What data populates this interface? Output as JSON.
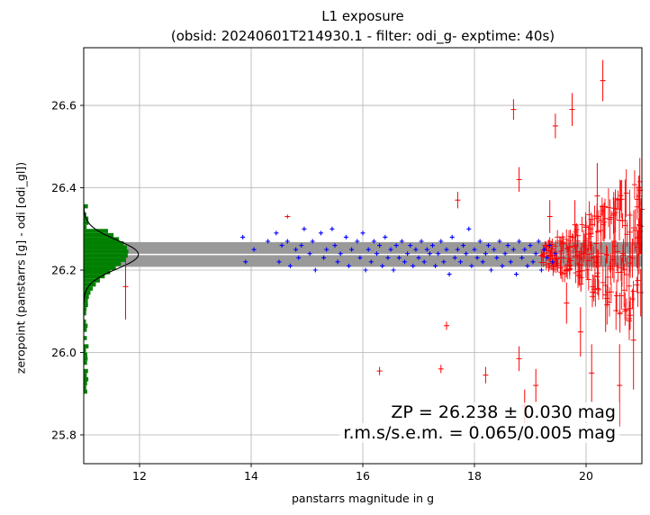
{
  "chart_data": {
    "type": "scatter",
    "title": "L1 exposure",
    "subtitle": "(obsid: 20240601T214930.1 - filter: odi_g- exptime: 40s)",
    "xlabel": "panstarrs magnitude in g",
    "ylabel": "zeropoint (panstarrs [g] - odi [odi_gl])",
    "xlim": [
      11.0,
      21.0
    ],
    "ylim": [
      25.73,
      26.74
    ],
    "xticks": [
      12,
      14,
      16,
      18,
      20
    ],
    "yticks": [
      25.8,
      26.0,
      26.2,
      26.4,
      26.6
    ],
    "grid": true,
    "zeropoint": 26.238,
    "zeropoint_error": 0.03,
    "annotation_line1": "ZP = 26.238 ± 0.030 mag",
    "annotation_line2": "r.m.s/s.e.m. = 0.065/0.005 mag",
    "colors": {
      "used": "#0000ff",
      "outlier": "#ff0000",
      "histogram": "#008000",
      "band": "#999999"
    },
    "used_points": [
      [
        13.85,
        26.28
      ],
      [
        13.9,
        26.22
      ],
      [
        14.05,
        26.25
      ],
      [
        14.3,
        26.27
      ],
      [
        14.45,
        26.29
      ],
      [
        14.5,
        26.22
      ],
      [
        14.55,
        26.26
      ],
      [
        14.65,
        26.27
      ],
      [
        14.7,
        26.21
      ],
      [
        14.8,
        26.25
      ],
      [
        14.85,
        26.23
      ],
      [
        14.9,
        26.26
      ],
      [
        14.95,
        26.3
      ],
      [
        15.05,
        26.24
      ],
      [
        15.1,
        26.27
      ],
      [
        15.15,
        26.2
      ],
      [
        15.25,
        26.29
      ],
      [
        15.3,
        26.23
      ],
      [
        15.35,
        26.25
      ],
      [
        15.45,
        26.3
      ],
      [
        15.5,
        26.26
      ],
      [
        15.55,
        26.22
      ],
      [
        15.6,
        26.24
      ],
      [
        15.7,
        26.28
      ],
      [
        15.75,
        26.21
      ],
      [
        15.8,
        26.25
      ],
      [
        15.9,
        26.27
      ],
      [
        15.95,
        26.23
      ],
      [
        16.0,
        26.29
      ],
      [
        16.05,
        26.2
      ],
      [
        16.1,
        26.25
      ],
      [
        16.15,
        26.22
      ],
      [
        16.2,
        26.27
      ],
      [
        16.25,
        26.24
      ],
      [
        16.3,
        26.26
      ],
      [
        16.35,
        26.21
      ],
      [
        16.4,
        26.28
      ],
      [
        16.45,
        26.23
      ],
      [
        16.5,
        26.25
      ],
      [
        16.55,
        26.2
      ],
      [
        16.6,
        26.26
      ],
      [
        16.65,
        26.23
      ],
      [
        16.7,
        26.27
      ],
      [
        16.75,
        26.22
      ],
      [
        16.8,
        26.24
      ],
      [
        16.85,
        26.26
      ],
      [
        16.9,
        26.21
      ],
      [
        16.95,
        26.25
      ],
      [
        17.0,
        26.23
      ],
      [
        17.05,
        26.27
      ],
      [
        17.1,
        26.22
      ],
      [
        17.15,
        26.25
      ],
      [
        17.2,
        26.24
      ],
      [
        17.25,
        26.26
      ],
      [
        17.3,
        26.21
      ],
      [
        17.35,
        26.24
      ],
      [
        17.4,
        26.27
      ],
      [
        17.45,
        26.22
      ],
      [
        17.5,
        26.25
      ],
      [
        17.55,
        26.19
      ],
      [
        17.6,
        26.28
      ],
      [
        17.65,
        26.23
      ],
      [
        17.7,
        26.25
      ],
      [
        17.75,
        26.22
      ],
      [
        17.8,
        26.26
      ],
      [
        17.85,
        26.24
      ],
      [
        17.9,
        26.3
      ],
      [
        17.95,
        26.21
      ],
      [
        18.0,
        26.25
      ],
      [
        18.05,
        26.23
      ],
      [
        18.1,
        26.27
      ],
      [
        18.15,
        26.22
      ],
      [
        18.2,
        26.24
      ],
      [
        18.25,
        26.26
      ],
      [
        18.3,
        26.2
      ],
      [
        18.35,
        26.25
      ],
      [
        18.4,
        26.23
      ],
      [
        18.45,
        26.27
      ],
      [
        18.5,
        26.21
      ],
      [
        18.55,
        26.24
      ],
      [
        18.6,
        26.26
      ],
      [
        18.65,
        26.22
      ],
      [
        18.7,
        26.25
      ],
      [
        18.75,
        26.19
      ],
      [
        18.8,
        26.27
      ],
      [
        18.85,
        26.23
      ],
      [
        18.9,
        26.25
      ],
      [
        18.95,
        26.21
      ],
      [
        19.0,
        26.26
      ],
      [
        19.05,
        26.22
      ],
      [
        19.1,
        26.24
      ],
      [
        19.15,
        26.27
      ],
      [
        19.2,
        26.2
      ],
      [
        19.25,
        26.25
      ],
      [
        19.3,
        26.23
      ],
      [
        19.35,
        26.26
      ],
      [
        19.4,
        26.22
      ],
      [
        19.45,
        26.24
      ]
    ],
    "outlier_points": [
      [
        11.75,
        26.16,
        0.08
      ],
      [
        14.65,
        26.33,
        0.005
      ],
      [
        16.3,
        25.955,
        0.01
      ],
      [
        17.4,
        25.96,
        0.01
      ],
      [
        17.5,
        26.065,
        0.01
      ],
      [
        17.7,
        26.37,
        0.02
      ],
      [
        18.2,
        25.945,
        0.02
      ],
      [
        18.7,
        26.59,
        0.025
      ],
      [
        18.8,
        26.42,
        0.03
      ],
      [
        18.8,
        25.985,
        0.03
      ],
      [
        18.9,
        25.87,
        0.04
      ],
      [
        19.1,
        25.92,
        0.04
      ],
      [
        19.35,
        26.33,
        0.04
      ],
      [
        19.45,
        26.55,
        0.03
      ],
      [
        19.55,
        26.23,
        0.05
      ],
      [
        19.65,
        26.12,
        0.05
      ],
      [
        19.75,
        26.59,
        0.04
      ],
      [
        19.8,
        26.31,
        0.06
      ],
      [
        19.9,
        26.05,
        0.06
      ],
      [
        20.0,
        26.25,
        0.07
      ],
      [
        20.1,
        25.95,
        0.07
      ],
      [
        20.2,
        26.38,
        0.08
      ],
      [
        20.3,
        26.66,
        0.05
      ],
      [
        20.35,
        26.14,
        0.09
      ],
      [
        20.5,
        26.27,
        0.1
      ],
      [
        20.6,
        25.92,
        0.1
      ],
      [
        20.7,
        26.32,
        0.1
      ],
      [
        20.85,
        26.03,
        0.12
      ],
      [
        20.95,
        26.31,
        0.12
      ]
    ],
    "histogram_note": "distribution of zeropoints projected on y axis"
  }
}
